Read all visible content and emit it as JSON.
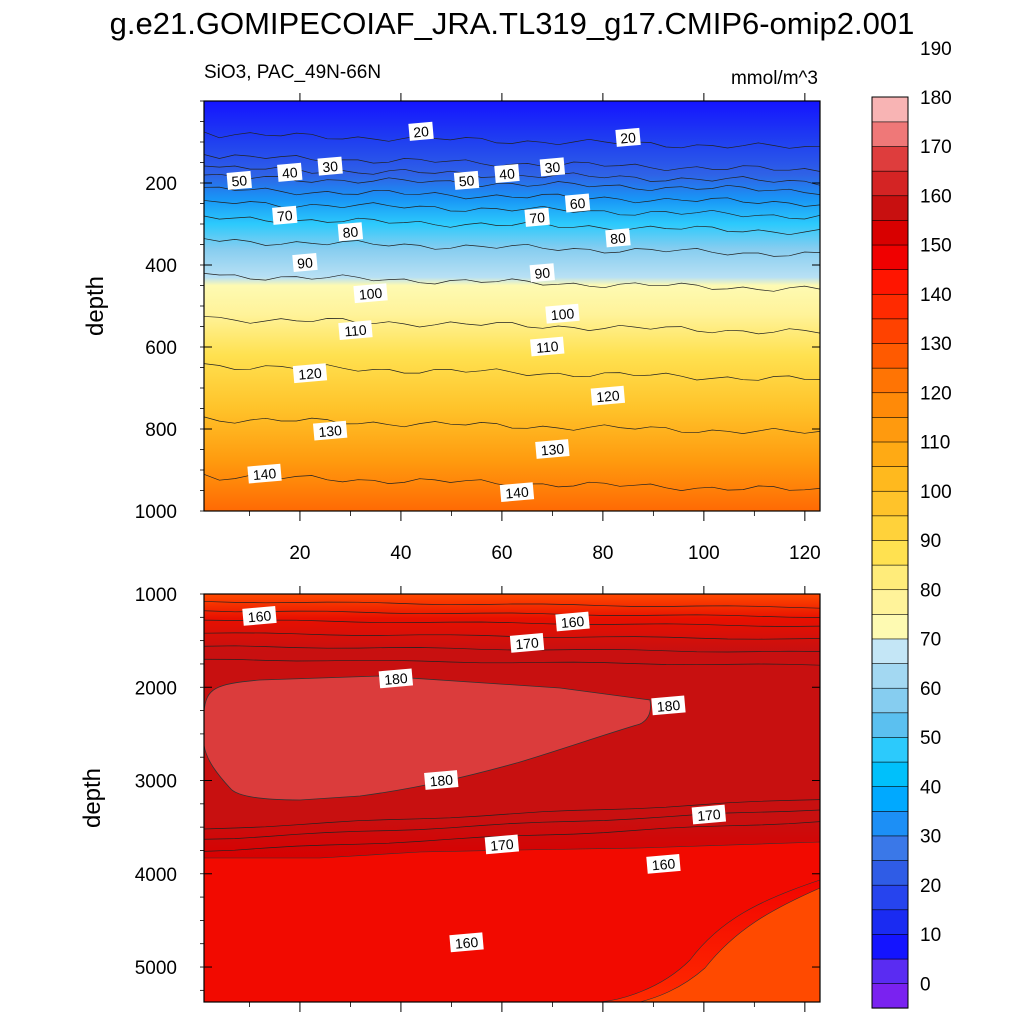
{
  "title": "g.e21.GOMIPECOIAF_JRA.TL319_g17.CMIP6-omip2.001",
  "chart_data": [
    {
      "type": "contour",
      "left_string": "SiO3, PAC_49N-66N",
      "right_string": "mmol/m^3",
      "ylabel": "depth",
      "x_ticks": [
        20,
        40,
        60,
        80,
        100,
        120
      ],
      "xlim": [
        1,
        123
      ],
      "y_ticks": [
        200,
        400,
        600,
        800,
        1000
      ],
      "ylim": [
        0,
        1000
      ],
      "y_reversed": true,
      "contour_lines": [
        {
          "level": 20,
          "depth": 95
        },
        {
          "level": 30,
          "depth": 150
        },
        {
          "level": 40,
          "depth": 178
        },
        {
          "level": 50,
          "depth": 200
        },
        {
          "level": 60,
          "depth": 230
        },
        {
          "level": 70,
          "depth": 262
        },
        {
          "level": 80,
          "depth": 300
        },
        {
          "level": 90,
          "depth": 355
        },
        {
          "level": 100,
          "depth": 440
        },
        {
          "level": 110,
          "depth": 545
        },
        {
          "level": 120,
          "depth": 660
        },
        {
          "level": 130,
          "depth": 790
        },
        {
          "level": 140,
          "depth": 930
        }
      ],
      "contour_labels": [
        {
          "text": "20",
          "x": 44,
          "y": 75
        },
        {
          "text": "20",
          "x": 85,
          "y": 90
        },
        {
          "text": "30",
          "x": 26,
          "y": 160
        },
        {
          "text": "40",
          "x": 18,
          "y": 175
        },
        {
          "text": "50",
          "x": 8,
          "y": 195
        },
        {
          "text": "50",
          "x": 53,
          "y": 195
        },
        {
          "text": "40",
          "x": 61,
          "y": 178
        },
        {
          "text": "30",
          "x": 70,
          "y": 162
        },
        {
          "text": "70",
          "x": 17,
          "y": 280
        },
        {
          "text": "80",
          "x": 30,
          "y": 320
        },
        {
          "text": "60",
          "x": 75,
          "y": 250
        },
        {
          "text": "70",
          "x": 67,
          "y": 285
        },
        {
          "text": "80",
          "x": 83,
          "y": 335
        },
        {
          "text": "90",
          "x": 21,
          "y": 395
        },
        {
          "text": "90",
          "x": 68,
          "y": 420
        },
        {
          "text": "100",
          "x": 34,
          "y": 470
        },
        {
          "text": "100",
          "x": 72,
          "y": 520
        },
        {
          "text": "110",
          "x": 31,
          "y": 560
        },
        {
          "text": "110",
          "x": 69,
          "y": 600
        },
        {
          "text": "120",
          "x": 22,
          "y": 665
        },
        {
          "text": "120",
          "x": 81,
          "y": 720
        },
        {
          "text": "130",
          "x": 26,
          "y": 805
        },
        {
          "text": "130",
          "x": 70,
          "y": 850
        },
        {
          "text": "140",
          "x": 13,
          "y": 910
        },
        {
          "text": "140",
          "x": 63,
          "y": 955
        }
      ]
    },
    {
      "type": "contour",
      "ylabel": "depth",
      "x_ticks": [
        20,
        40,
        60,
        80,
        100,
        120
      ],
      "xlim": [
        1,
        123
      ],
      "y_ticks": [
        1000,
        2000,
        3000,
        4000,
        5000
      ],
      "ylim": [
        1000,
        5375
      ],
      "y_reversed": true,
      "contour_labels": [
        {
          "text": "160",
          "x": 12,
          "y": 1240
        },
        {
          "text": "160",
          "x": 74,
          "y": 1300
        },
        {
          "text": "170",
          "x": 65,
          "y": 1530
        },
        {
          "text": "180",
          "x": 39,
          "y": 1910
        },
        {
          "text": "180",
          "x": 93,
          "y": 2200
        },
        {
          "text": "180",
          "x": 48,
          "y": 3000
        },
        {
          "text": "170",
          "x": 101,
          "y": 3370
        },
        {
          "text": "170",
          "x": 60,
          "y": 3690
        },
        {
          "text": "160",
          "x": 92,
          "y": 3900
        },
        {
          "text": "160",
          "x": 53,
          "y": 4740
        }
      ]
    }
  ],
  "colorbar": {
    "labels": [
      "0",
      "10",
      "20",
      "30",
      "40",
      "50",
      "60",
      "70",
      "80",
      "90",
      "100",
      "110",
      "120",
      "130",
      "140",
      "150",
      "160",
      "170",
      "180",
      "190"
    ],
    "colors": [
      "#7a22f0",
      "#5a2cf2",
      "#1414ff",
      "#1a2bf2",
      "#2644ee",
      "#2f5ce6",
      "#3a78e8",
      "#1c8ff6",
      "#00a9ff",
      "#00c0fb",
      "#2ccafc",
      "#5bc0f0",
      "#86cdf0",
      "#a3d8f2",
      "#c4e6f6",
      "#fefab2",
      "#fff39a",
      "#ffec7a",
      "#ffe150",
      "#ffd23a",
      "#ffc32a",
      "#ffb91e",
      "#ffaa14",
      "#ff9a0e",
      "#ff8a08",
      "#ff7404",
      "#ff5a00",
      "#ff4200",
      "#ff2a00",
      "#ff1500",
      "#f00000",
      "#d80000",
      "#c81010",
      "#d42424",
      "#de3d3d",
      "#ef7878",
      "#f8b4b4"
    ]
  }
}
